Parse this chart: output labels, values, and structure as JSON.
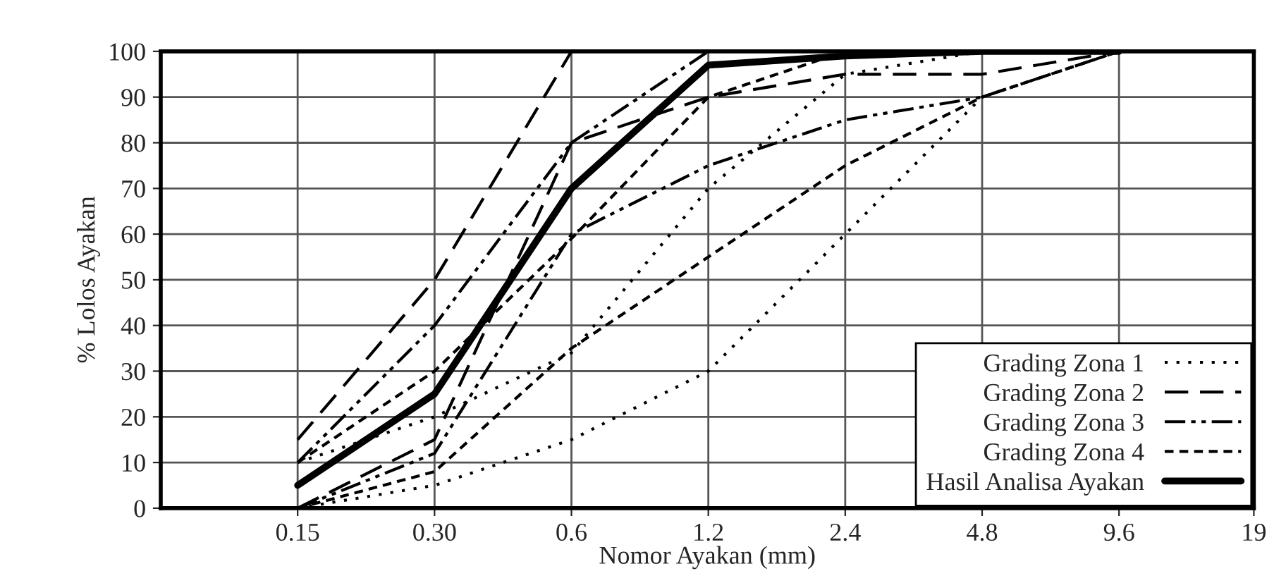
{
  "chart_data": {
    "type": "line",
    "xlabel": "Nomor Ayakan (mm)",
    "ylabel": "% Lolos Ayakan",
    "x": [
      0.15,
      0.3,
      0.6,
      1.2,
      2.4,
      4.8,
      9.6
    ],
    "log": "x",
    "xlim": [
      0.075,
      19
    ],
    "xticks": [
      0.15,
      {
        "value": 0.3,
        "label": "0.30"
      },
      0.6,
      1.2,
      2.4,
      4.8,
      9.6,
      19
    ],
    "ylim": [
      0,
      100
    ],
    "yticks": [
      0,
      10,
      20,
      30,
      40,
      50,
      60,
      70,
      80,
      90,
      100
    ],
    "grid": true,
    "legend": "bottom right",
    "series": [
      {
        "name": "Grading Zona 1",
        "color": "#000000",
        "line_style": "dotted",
        "values": [
          0,
          5,
          15,
          30,
          60,
          90,
          100
        ]
      },
      {
        "color": "#000000",
        "line_style": "dotted",
        "values": [
          10,
          20,
          34,
          70,
          95,
          100,
          100
        ]
      },
      {
        "name": "Grading Zona 2",
        "color": "#000000",
        "line_style": "dashed",
        "values": [
          0,
          15,
          80,
          90,
          95,
          95,
          100
        ]
      },
      {
        "color": "#000000",
        "line_style": "dashed",
        "values": [
          15,
          50,
          100,
          100,
          100,
          100,
          100
        ]
      },
      {
        "name": "Grading Zona 3",
        "color": "#000000",
        "line_style": "dashdot",
        "values": [
          0,
          12,
          60,
          75,
          85,
          90,
          100
        ]
      },
      {
        "color": "#000000",
        "line_style": "dashdot",
        "values": [
          10,
          40,
          80,
          100,
          100,
          100,
          100
        ]
      },
      {
        "name": "Grading Zona 4",
        "color": "#000000",
        "line_style": "short dashed",
        "values": [
          0,
          8,
          35,
          55,
          75,
          90,
          100
        ]
      },
      {
        "color": "#000000",
        "line_style": "short dashed",
        "values": [
          10,
          30,
          59,
          90,
          100,
          100,
          100
        ]
      },
      {
        "name": "Hasil Analisa Ayakan",
        "color": "#000000",
        "line_style": "solid",
        "values": [
          5,
          25,
          70,
          97,
          99,
          100,
          100
        ]
      }
    ]
  }
}
